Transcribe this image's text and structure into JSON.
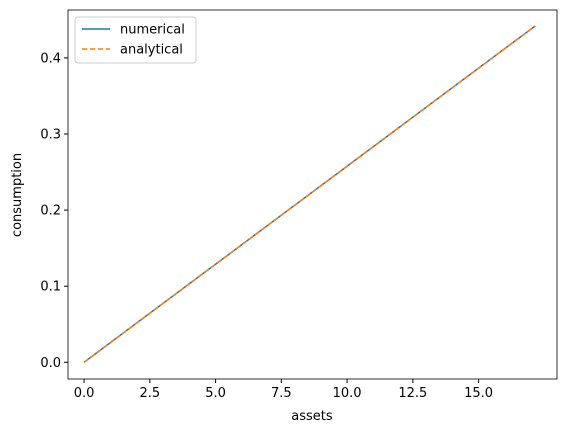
{
  "chart_data": {
    "type": "line",
    "xlabel": "assets",
    "ylabel": "consumption",
    "series": [
      {
        "name": "numerical",
        "color": "#1f77b4",
        "dash": "solid",
        "x": [
          0,
          17.15
        ],
        "values": [
          0,
          0.442
        ]
      },
      {
        "name": "analytical",
        "color": "#ff7f0e",
        "dash": "dashed",
        "x": [
          0,
          17.15
        ],
        "values": [
          0,
          0.442
        ]
      }
    ],
    "xlim": [
      -0.61,
      17.98
    ],
    "ylim": [
      -0.022,
      0.463
    ],
    "xticks": [
      {
        "value": 0,
        "label": "0.0"
      },
      2.5,
      {
        "value": 5,
        "label": "5.0"
      },
      7.5,
      {
        "value": 10,
        "label": "10.0"
      },
      12.5,
      {
        "value": 15,
        "label": "15.0"
      }
    ],
    "yticks": [
      {
        "value": 0,
        "label": "0.0"
      },
      0.1,
      0.2,
      0.3,
      0.4
    ],
    "legend": "upper-left"
  }
}
